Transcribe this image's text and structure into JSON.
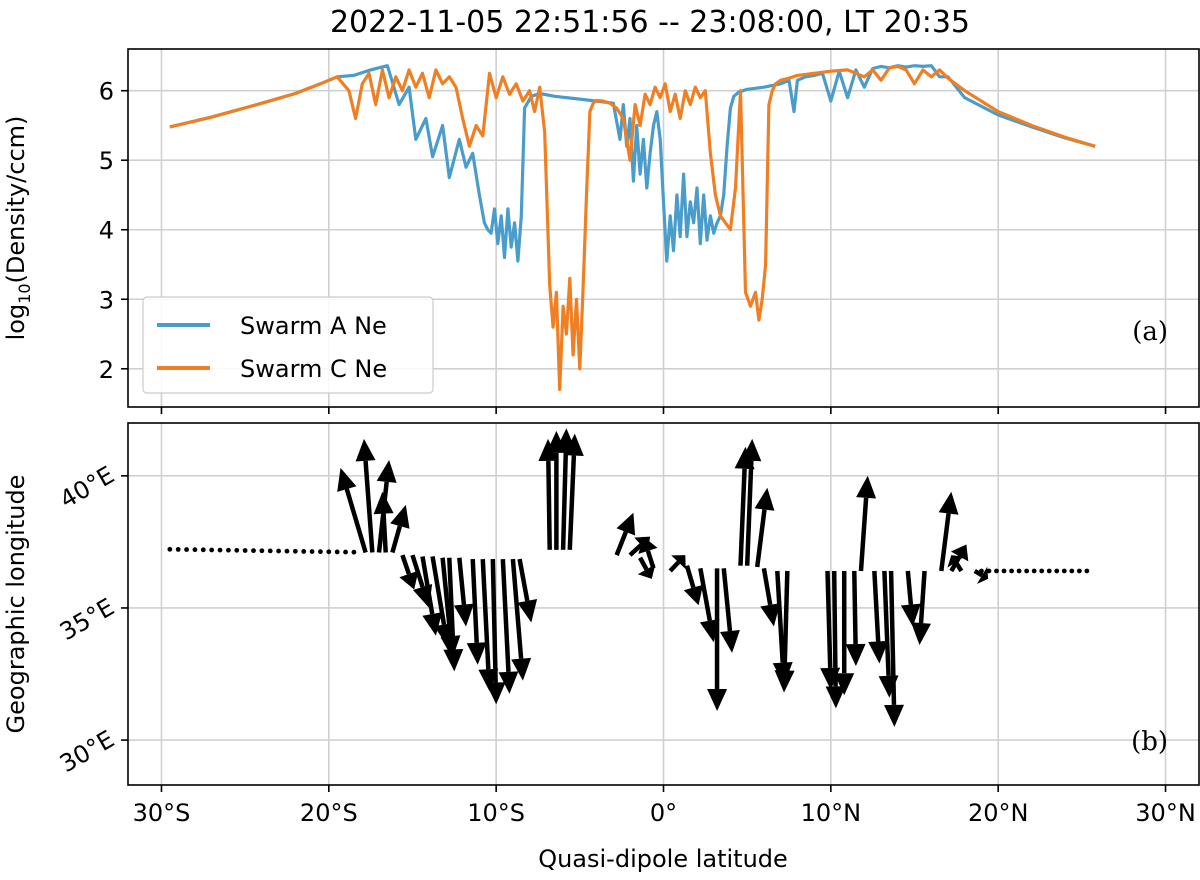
{
  "chart_data": [
    {
      "type": "line",
      "panel_label": "(a)",
      "title": "2022-11-05 22:51:56 -- 23:08:00, LT 20:35",
      "xlabel": "",
      "ylabel_html": "log<tspan font-size=\"16\" dy=\"6\">10</tspan><tspan dy=\"-6\">(Density/ccm)</tspan>",
      "ylabel": "log10(Density/ccm)",
      "xlim": [
        -32,
        32
      ],
      "ylim": [
        1.45,
        6.6
      ],
      "yticks": [
        2,
        3,
        4,
        5,
        6
      ],
      "grid": true,
      "legend_position": "lower-left",
      "series": [
        {
          "name": "Swarm A Ne",
          "color": "#4a9dca",
          "x": [
            -29.5,
            -27,
            -24,
            -22,
            -20.5,
            -19.5,
            -18.5,
            -17.5,
            -16.5,
            -15.8,
            -15.2,
            -14.8,
            -14.2,
            -13.8,
            -13.2,
            -12.8,
            -12.2,
            -11.8,
            -11.4,
            -11.0,
            -10.7,
            -10.5,
            -10.3,
            -10.1,
            -9.9,
            -9.7,
            -9.5,
            -9.3,
            -9.1,
            -8.9,
            -8.7,
            -8.5,
            -8.3,
            -7.9,
            -7.4,
            -6.5,
            -5.0,
            -4.0,
            -3.0,
            -2.6,
            -2.4,
            -2.2,
            -2.0,
            -1.8,
            -1.6,
            -1.4,
            -1.2,
            -1.0,
            -0.8,
            -0.6,
            -0.4,
            -0.2,
            0.0,
            0.2,
            0.4,
            0.6,
            0.8,
            1.0,
            1.2,
            1.4,
            1.6,
            1.8,
            2.0,
            2.2,
            2.4,
            2.6,
            2.8,
            3.0,
            3.2,
            3.4,
            3.6,
            3.8,
            4.0,
            4.2,
            4.5,
            5.0,
            6.0,
            7.0,
            7.5,
            7.8,
            8.0,
            8.5,
            9.0,
            9.5,
            10.0,
            10.5,
            11.0,
            11.5,
            12.0,
            12.5,
            13.0,
            13.5,
            14.0,
            14.5,
            15.0,
            15.5,
            16.0,
            16.5,
            17.0,
            18.0,
            20.0,
            22.0,
            24.0,
            25.8
          ],
          "values": [
            5.48,
            5.62,
            5.82,
            5.96,
            6.1,
            6.2,
            6.22,
            6.3,
            6.36,
            5.8,
            6.05,
            5.3,
            5.6,
            5.05,
            5.5,
            4.75,
            5.3,
            4.9,
            5.1,
            4.5,
            4.1,
            4.0,
            3.95,
            4.3,
            3.8,
            4.2,
            3.6,
            4.3,
            3.75,
            4.1,
            3.55,
            4.2,
            5.75,
            5.92,
            5.96,
            5.92,
            5.88,
            5.85,
            5.82,
            5.3,
            5.8,
            5.2,
            5.6,
            4.7,
            5.5,
            4.8,
            5.3,
            4.6,
            5.1,
            5.5,
            5.7,
            5.3,
            4.4,
            3.55,
            4.2,
            3.7,
            4.5,
            3.9,
            4.8,
            3.9,
            4.4,
            4.1,
            4.6,
            3.8,
            4.5,
            3.85,
            4.2,
            3.95,
            4.1,
            4.2,
            4.5,
            5.2,
            5.75,
            5.92,
            5.98,
            6.02,
            6.05,
            6.1,
            6.15,
            5.7,
            6.15,
            6.2,
            6.22,
            6.25,
            5.85,
            6.28,
            5.9,
            6.3,
            6.05,
            6.32,
            6.35,
            6.33,
            6.36,
            6.34,
            6.36,
            6.35,
            6.36,
            6.2,
            6.2,
            5.9,
            5.65,
            5.48,
            5.32,
            5.2
          ]
        },
        {
          "name": "Swarm C Ne",
          "color": "#f07f24",
          "x": [
            -29.5,
            -27,
            -24,
            -22,
            -20.5,
            -19.5,
            -18.8,
            -18.4,
            -18.0,
            -17.6,
            -17.2,
            -16.8,
            -16.4,
            -16.0,
            -15.6,
            -15.2,
            -14.8,
            -14.4,
            -14.0,
            -13.6,
            -13.2,
            -12.8,
            -12.4,
            -12.0,
            -11.6,
            -11.2,
            -10.8,
            -10.4,
            -10.0,
            -9.6,
            -9.2,
            -8.8,
            -8.4,
            -8.0,
            -7.7,
            -7.4,
            -7.1,
            -6.8,
            -6.6,
            -6.4,
            -6.2,
            -6.0,
            -5.8,
            -5.6,
            -5.4,
            -5.2,
            -5.0,
            -4.8,
            -4.6,
            -4.4,
            -4.2,
            -4.0,
            -3.6,
            -3.2,
            -2.8,
            -2.4,
            -2.0,
            -1.7,
            -1.4,
            -1.1,
            -0.8,
            -0.5,
            -0.2,
            0.1,
            0.4,
            0.7,
            1.0,
            1.3,
            1.6,
            1.9,
            2.2,
            2.5,
            2.8,
            3.1,
            3.4,
            3.7,
            4.0,
            4.3,
            4.6,
            4.9,
            5.2,
            5.5,
            5.7,
            5.9,
            6.1,
            6.3,
            6.5,
            6.7,
            7.0,
            7.5,
            8.0,
            9.0,
            10.0,
            11.0,
            12.0,
            12.5,
            13.0,
            13.5,
            14.0,
            14.5,
            15.0,
            15.5,
            16.0,
            16.5,
            17.0,
            18.0,
            20.0,
            22.0,
            24.0,
            25.8
          ],
          "values": [
            5.48,
            5.62,
            5.82,
            5.96,
            6.1,
            6.2,
            6.0,
            5.6,
            6.1,
            6.25,
            5.8,
            6.3,
            5.9,
            6.2,
            6.0,
            6.3,
            6.05,
            6.25,
            5.9,
            6.3,
            6.1,
            6.2,
            6.05,
            5.6,
            5.2,
            5.5,
            5.35,
            6.25,
            5.9,
            6.2,
            5.95,
            6.1,
            5.85,
            6.0,
            5.7,
            6.05,
            5.4,
            3.2,
            2.6,
            3.1,
            1.7,
            2.9,
            2.5,
            3.3,
            2.2,
            3.0,
            2.0,
            3.2,
            4.5,
            5.7,
            5.82,
            5.86,
            5.85,
            5.82,
            5.75,
            5.6,
            5.0,
            5.8,
            5.5,
            5.95,
            5.8,
            6.05,
            5.9,
            6.1,
            5.7,
            5.95,
            5.6,
            6.0,
            5.8,
            6.05,
            5.9,
            6.0,
            5.1,
            4.5,
            4.2,
            4.1,
            4.0,
            4.6,
            6.0,
            3.1,
            2.9,
            3.1,
            2.7,
            3.0,
            3.5,
            5.8,
            6.0,
            6.1,
            6.15,
            6.18,
            6.22,
            6.25,
            6.28,
            6.3,
            6.2,
            6.3,
            6.15,
            6.33,
            6.35,
            6.3,
            6.1,
            6.3,
            6.2,
            6.3,
            6.18,
            6.0,
            5.7,
            5.5,
            5.33,
            5.2
          ]
        }
      ]
    },
    {
      "type": "quiver",
      "panel_label": "(b)",
      "xlabel": "Quasi-dipole latitude",
      "ylabel": "Geographic longitude",
      "xlim": [
        -32,
        32
      ],
      "ylim": [
        42.0,
        28.3
      ],
      "xticks": [
        -30,
        -20,
        -10,
        0,
        10,
        20,
        30
      ],
      "xticklabels": [
        "30°S",
        "20°S",
        "10°S",
        "0°",
        "10°N",
        "20°N",
        "30°N"
      ],
      "yticks": [
        30,
        35,
        40
      ],
      "yticklabels": [
        "30°E",
        "35°E",
        "40°E"
      ],
      "grid": true,
      "arrow_color": "#000000",
      "vectors": [
        {
          "lat": -17.8,
          "lon": 37.1,
          "dlat": -1.5,
          "dlon": 3.2
        },
        {
          "lat": -17.4,
          "lon": 37.1,
          "dlat": -0.5,
          "dlon": 4.3
        },
        {
          "lat": -17.0,
          "lon": 37.1,
          "dlat": 0.6,
          "dlon": 3.5
        },
        {
          "lat": -16.6,
          "lon": 37.1,
          "dlat": -0.2,
          "dlon": 2.3
        },
        {
          "lat": -16.2,
          "lon": 37.1,
          "dlat": 0.8,
          "dlon": 1.8
        },
        {
          "lat": -15.6,
          "lon": 37.0,
          "dlat": 0.7,
          "dlon": -1.3
        },
        {
          "lat": -15.0,
          "lon": 37.0,
          "dlat": 1.0,
          "dlon": -2.0
        },
        {
          "lat": -14.4,
          "lon": 36.95,
          "dlat": 0.8,
          "dlon": -3.0
        },
        {
          "lat": -13.8,
          "lon": 36.95,
          "dlat": 0.9,
          "dlon": -3.4
        },
        {
          "lat": -13.2,
          "lon": 36.9,
          "dlat": 0.6,
          "dlon": -3.8
        },
        {
          "lat": -12.8,
          "lon": 36.9,
          "dlat": 0.3,
          "dlon": -4.3
        },
        {
          "lat": -12.2,
          "lon": 36.9,
          "dlat": 0.4,
          "dlon": -2.6
        },
        {
          "lat": -11.4,
          "lon": 36.85,
          "dlat": 0.3,
          "dlon": -4.0
        },
        {
          "lat": -10.8,
          "lon": 36.85,
          "dlat": 0.4,
          "dlon": -5.0
        },
        {
          "lat": -10.2,
          "lon": 36.85,
          "dlat": 0.2,
          "dlon": -5.5
        },
        {
          "lat": -9.6,
          "lon": 36.85,
          "dlat": 0.4,
          "dlon": -5.1
        },
        {
          "lat": -9.0,
          "lon": 36.85,
          "dlat": 0.6,
          "dlon": -4.6
        },
        {
          "lat": -8.6,
          "lon": 36.85,
          "dlat": 0.7,
          "dlon": -2.4
        },
        {
          "lat": -6.8,
          "lon": 37.2,
          "dlat": -0.1,
          "dlon": 4.2
        },
        {
          "lat": -6.4,
          "lon": 37.2,
          "dlat": 0.0,
          "dlon": 4.5
        },
        {
          "lat": -6.0,
          "lon": 37.2,
          "dlat": 0.2,
          "dlon": 4.6
        },
        {
          "lat": -5.6,
          "lon": 37.2,
          "dlat": 0.3,
          "dlon": 4.4
        },
        {
          "lat": -2.8,
          "lon": 37.0,
          "dlat": 1.0,
          "dlon": 1.6
        },
        {
          "lat": -2.0,
          "lon": 37.0,
          "dlat": 1.2,
          "dlon": 0.7
        },
        {
          "lat": -1.4,
          "lon": 36.9,
          "dlat": 0.7,
          "dlon": -0.8
        },
        {
          "lat": -0.6,
          "lon": 36.5,
          "dlat": -0.6,
          "dlon": 1.2
        },
        {
          "lat": 0.4,
          "lon": 36.4,
          "dlat": 0.9,
          "dlon": 0.6
        },
        {
          "lat": 1.4,
          "lon": 36.6,
          "dlat": 0.7,
          "dlon": -1.5
        },
        {
          "lat": 2.2,
          "lon": 36.5,
          "dlat": 0.8,
          "dlon": -2.8
        },
        {
          "lat": 3.2,
          "lon": 36.5,
          "dlat": 0.0,
          "dlon": -5.4
        },
        {
          "lat": 3.6,
          "lon": 36.5,
          "dlat": 0.5,
          "dlon": -3.2
        },
        {
          "lat": 4.6,
          "lon": 36.6,
          "dlat": 0.3,
          "dlon": 4.5
        },
        {
          "lat": 5.0,
          "lon": 36.6,
          "dlat": 0.3,
          "dlon": 4.8
        },
        {
          "lat": 5.6,
          "lon": 36.55,
          "dlat": 0.6,
          "dlon": 3.0
        },
        {
          "lat": 6.0,
          "lon": 36.5,
          "dlat": 0.6,
          "dlon": -2.2
        },
        {
          "lat": 6.8,
          "lon": 36.4,
          "dlat": 0.4,
          "dlon": -4.3
        },
        {
          "lat": 7.4,
          "lon": 36.4,
          "dlat": -0.2,
          "dlon": -4.6
        },
        {
          "lat": 9.8,
          "lon": 36.4,
          "dlat": 0.2,
          "dlon": -4.5
        },
        {
          "lat": 10.2,
          "lon": 36.4,
          "dlat": 0.1,
          "dlon": -5.2
        },
        {
          "lat": 10.8,
          "lon": 36.4,
          "dlat": 0.0,
          "dlon": -4.7
        },
        {
          "lat": 11.4,
          "lon": 36.4,
          "dlat": 0.1,
          "dlon": -3.6
        },
        {
          "lat": 11.8,
          "lon": 36.4,
          "dlat": 0.4,
          "dlon": 3.6
        },
        {
          "lat": 12.6,
          "lon": 36.4,
          "dlat": 0.3,
          "dlon": -3.5
        },
        {
          "lat": 13.2,
          "lon": 36.4,
          "dlat": 0.3,
          "dlon": -4.8
        },
        {
          "lat": 13.6,
          "lon": 36.4,
          "dlat": 0.2,
          "dlon": -5.9
        },
        {
          "lat": 14.6,
          "lon": 36.4,
          "dlat": 0.3,
          "dlon": -2.1
        },
        {
          "lat": 15.6,
          "lon": 36.4,
          "dlat": -0.3,
          "dlon": -2.8
        },
        {
          "lat": 16.6,
          "lon": 36.4,
          "dlat": 0.6,
          "dlon": 3.0
        },
        {
          "lat": 17.2,
          "lon": 36.4,
          "dlat": 0.9,
          "dlon": 1.0
        },
        {
          "lat": 17.8,
          "lon": 36.4,
          "dlat": -0.6,
          "dlon": 0.6
        },
        {
          "lat": 18.6,
          "lon": 36.4,
          "dlat": 0.8,
          "dlon": -0.3
        }
      ]
    }
  ]
}
